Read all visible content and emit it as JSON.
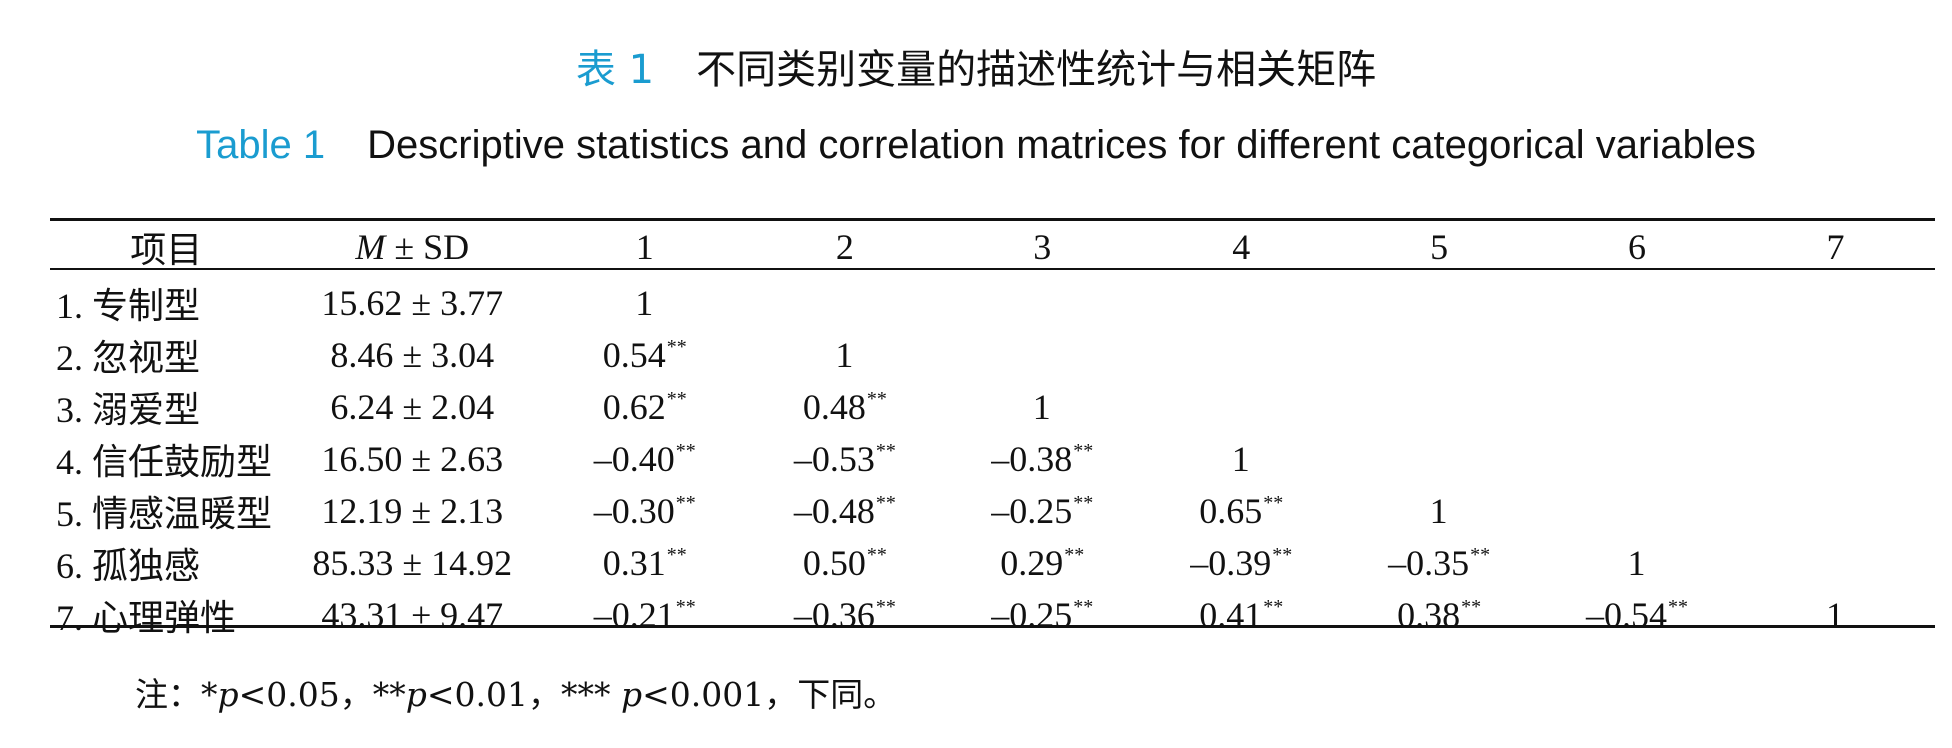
{
  "title": {
    "cn_label": "表 1",
    "cn_text": "不同类别变量的描述性统计与相关矩阵",
    "en_label": "Table 1",
    "en_text": "Descriptive statistics and correlation matrices for different categorical variables"
  },
  "colors": {
    "label": "#1a9cd0",
    "text": "#111111",
    "rule": "#111111"
  },
  "table": {
    "header": {
      "item": "项目",
      "msd_m": "M",
      "msd_rest": " ± SD",
      "cols": [
        "1",
        "2",
        "3",
        "4",
        "5",
        "6",
        "7"
      ]
    },
    "rows": [
      {
        "item": "1. 专制型",
        "msd": "15.62 ± 3.77",
        "cells": [
          {
            "v": "1",
            "s": ""
          },
          {
            "v": "",
            "s": ""
          },
          {
            "v": "",
            "s": ""
          },
          {
            "v": "",
            "s": ""
          },
          {
            "v": "",
            "s": ""
          },
          {
            "v": "",
            "s": ""
          },
          {
            "v": "",
            "s": ""
          }
        ]
      },
      {
        "item": "2. 忽视型",
        "msd": "8.46 ± 3.04",
        "cells": [
          {
            "v": "0.54",
            "s": "**"
          },
          {
            "v": "1",
            "s": ""
          },
          {
            "v": "",
            "s": ""
          },
          {
            "v": "",
            "s": ""
          },
          {
            "v": "",
            "s": ""
          },
          {
            "v": "",
            "s": ""
          },
          {
            "v": "",
            "s": ""
          }
        ]
      },
      {
        "item": "3. 溺爱型",
        "msd": "6.24 ± 2.04",
        "cells": [
          {
            "v": "0.62",
            "s": "**"
          },
          {
            "v": "0.48",
            "s": "**"
          },
          {
            "v": "1",
            "s": ""
          },
          {
            "v": "",
            "s": ""
          },
          {
            "v": "",
            "s": ""
          },
          {
            "v": "",
            "s": ""
          },
          {
            "v": "",
            "s": ""
          }
        ]
      },
      {
        "item": "4. 信任鼓励型",
        "msd": "16.50 ± 2.63",
        "cells": [
          {
            "v": "–0.40",
            "s": "**"
          },
          {
            "v": "–0.53",
            "s": "**"
          },
          {
            "v": "–0.38",
            "s": "**"
          },
          {
            "v": "1",
            "s": ""
          },
          {
            "v": "",
            "s": ""
          },
          {
            "v": "",
            "s": ""
          },
          {
            "v": "",
            "s": ""
          }
        ]
      },
      {
        "item": "5. 情感温暖型",
        "msd": "12.19 ± 2.13",
        "cells": [
          {
            "v": "–0.30",
            "s": "**"
          },
          {
            "v": "–0.48",
            "s": "**"
          },
          {
            "v": "–0.25",
            "s": "**"
          },
          {
            "v": "0.65",
            "s": "**"
          },
          {
            "v": "1",
            "s": ""
          },
          {
            "v": "",
            "s": ""
          },
          {
            "v": "",
            "s": ""
          }
        ]
      },
      {
        "item": "6. 孤独感",
        "msd": "85.33 ± 14.92",
        "cells": [
          {
            "v": "0.31",
            "s": "**"
          },
          {
            "v": "0.50",
            "s": "**"
          },
          {
            "v": "0.29",
            "s": "**"
          },
          {
            "v": "–0.39",
            "s": "**"
          },
          {
            "v": "–0.35",
            "s": "**"
          },
          {
            "v": "1",
            "s": ""
          },
          {
            "v": "",
            "s": ""
          }
        ]
      },
      {
        "item": "7. 心理弹性",
        "msd": "43.31 ± 9.47",
        "cells": [
          {
            "v": "–0.21",
            "s": "**"
          },
          {
            "v": "–0.36",
            "s": "**"
          },
          {
            "v": "–0.25",
            "s": "**"
          },
          {
            "v": "0.41",
            "s": "**"
          },
          {
            "v": "0.38",
            "s": "**"
          },
          {
            "v": "–0.54",
            "s": "**"
          },
          {
            "v": "1",
            "s": ""
          }
        ]
      }
    ]
  },
  "note": {
    "prefix": "注：",
    "t1a": "*",
    "p1": "p",
    "t1b": "<0.05，",
    "t2a": "**",
    "p2": "p",
    "t2b": "<0.01，",
    "t3a": "*** ",
    "p3": "p",
    "t3b": "<0.001，",
    "suffix": "下同。"
  }
}
